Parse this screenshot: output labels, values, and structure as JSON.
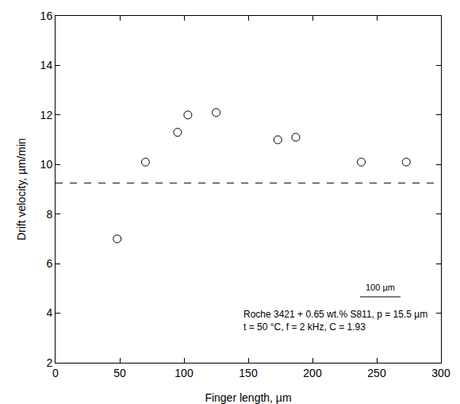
{
  "chart_data": {
    "type": "scatter",
    "x_label": "Finger length, µm",
    "y_label": "Drift velocity, µm/min",
    "x": [
      48,
      70,
      95,
      103,
      125,
      173,
      187,
      238,
      273
    ],
    "values": [
      7.0,
      10.1,
      11.3,
      12.0,
      12.1,
      11.0,
      11.1,
      10.1,
      10.1
    ],
    "color": "#000000",
    "marker": "open circle",
    "reference_line": 9.25,
    "xlim": [
      0,
      300
    ],
    "xticks": [
      0,
      50,
      100,
      150,
      200,
      250,
      300
    ],
    "ylim": [
      2,
      16
    ],
    "yticks": [
      2,
      4,
      6,
      8,
      10,
      12,
      14,
      16
    ],
    "grid": false,
    "annotations": [
      "Roche 3421 + 0.65 wt.% S811, p = 15.5 µm",
      "t = 50 °C, f = 2 kHz, C = 1.93"
    ],
    "scale_bar_label": "100 µm"
  }
}
